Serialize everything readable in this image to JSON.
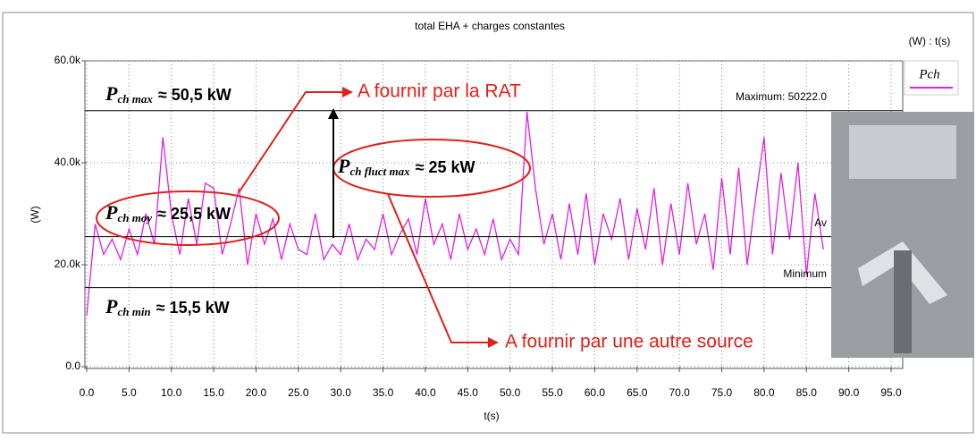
{
  "chart_data": {
    "type": "line",
    "title": "total EHA + charges constantes",
    "units_label": "(W) : t(s)",
    "ylabel": "(W)",
    "xlabel": "t(s)",
    "xlim": [
      0,
      95
    ],
    "ylim": [
      0,
      60000
    ],
    "xticks": [
      {
        "value": 0,
        "label": "0.0"
      },
      {
        "value": 5,
        "label": "5.0"
      },
      {
        "value": 10,
        "label": "10.0"
      },
      {
        "value": 15,
        "label": "15.0"
      },
      {
        "value": 20,
        "label": "20.0"
      },
      {
        "value": 25,
        "label": "25.0"
      },
      {
        "value": 30,
        "label": "30.0"
      },
      {
        "value": 35,
        "label": "35.0"
      },
      {
        "value": 40,
        "label": "40.0"
      },
      {
        "value": 45,
        "label": "45.0"
      },
      {
        "value": 50,
        "label": "50.0"
      },
      {
        "value": 55,
        "label": "55.0"
      },
      {
        "value": 60,
        "label": "60.0"
      },
      {
        "value": 65,
        "label": "65.0"
      },
      {
        "value": 70,
        "label": "70.0"
      },
      {
        "value": 75,
        "label": "75.0"
      },
      {
        "value": 80,
        "label": "80.0"
      },
      {
        "value": 85,
        "label": "85.0"
      },
      {
        "value": 90,
        "label": "90.0"
      },
      {
        "value": 95,
        "label": "95.0"
      }
    ],
    "yticks": [
      {
        "value": 0,
        "label": "0.0"
      },
      {
        "value": 20000,
        "label": "20.0k"
      },
      {
        "value": 40000,
        "label": "40.0k"
      },
      {
        "value": 60000,
        "label": "60.0k"
      }
    ],
    "grid": true,
    "x": [
      0,
      1,
      2,
      3,
      4,
      5,
      6,
      7,
      8,
      9,
      10,
      11,
      12,
      13,
      14,
      15,
      16,
      17,
      18,
      19,
      20,
      21,
      22,
      23,
      24,
      25,
      26,
      27,
      28,
      29,
      30,
      31,
      32,
      33,
      34,
      35,
      36,
      37,
      38,
      39,
      40,
      41,
      42,
      43,
      44,
      45,
      46,
      47,
      48,
      49,
      50,
      51,
      52,
      53,
      54,
      55,
      56,
      57,
      58,
      59,
      60,
      61,
      62,
      63,
      64,
      65,
      66,
      67,
      68,
      69,
      70,
      71,
      72,
      73,
      74,
      75,
      76,
      77,
      78,
      79,
      80,
      81,
      82,
      83,
      84,
      85,
      86,
      87
    ],
    "series": [
      {
        "name": "Pch",
        "color": "#e020e0",
        "values": [
          10000,
          28000,
          22000,
          25000,
          21000,
          27000,
          22000,
          30000,
          24000,
          45000,
          30000,
          22000,
          33000,
          24000,
          36000,
          35000,
          22000,
          28000,
          35000,
          20000,
          30000,
          24000,
          29000,
          21000,
          28000,
          23000,
          22000,
          30000,
          21000,
          24000,
          22000,
          28000,
          21000,
          25000,
          23000,
          30000,
          22000,
          26000,
          29000,
          22000,
          33000,
          24000,
          28000,
          21000,
          30000,
          23000,
          27000,
          22000,
          29000,
          21000,
          25000,
          22000,
          50000,
          35000,
          24000,
          30000,
          21000,
          32000,
          22000,
          34000,
          20000,
          30000,
          25000,
          33000,
          21000,
          31000,
          23000,
          35000,
          20000,
          32000,
          22000,
          36000,
          24000,
          30000,
          19000,
          37000,
          22000,
          39000,
          20000,
          33000,
          45000,
          22000,
          38000,
          25000,
          40000,
          18000,
          34000,
          23000
        ]
      }
    ],
    "reference_lines": [
      {
        "label": "Maximum: 50222.0",
        "value": 50222
      },
      {
        "label": "Av",
        "value": 25500
      },
      {
        "label": "Minimum",
        "value": 15500
      }
    ],
    "annotations": [
      {
        "symbol": "P",
        "subscript": "ch max",
        "text": "≈ 50,5 kW"
      },
      {
        "symbol": "P",
        "subscript": "ch fluct max",
        "text": "≈ 25 kW"
      },
      {
        "symbol": "P",
        "subscript": "ch moy",
        "text": "≈ 25,5 kW"
      },
      {
        "symbol": "P",
        "subscript": "ch min",
        "text": "≈ 15,5 kW"
      }
    ],
    "callouts": [
      "A fournir par la RAT",
      "A fournir par une autre source"
    ]
  }
}
